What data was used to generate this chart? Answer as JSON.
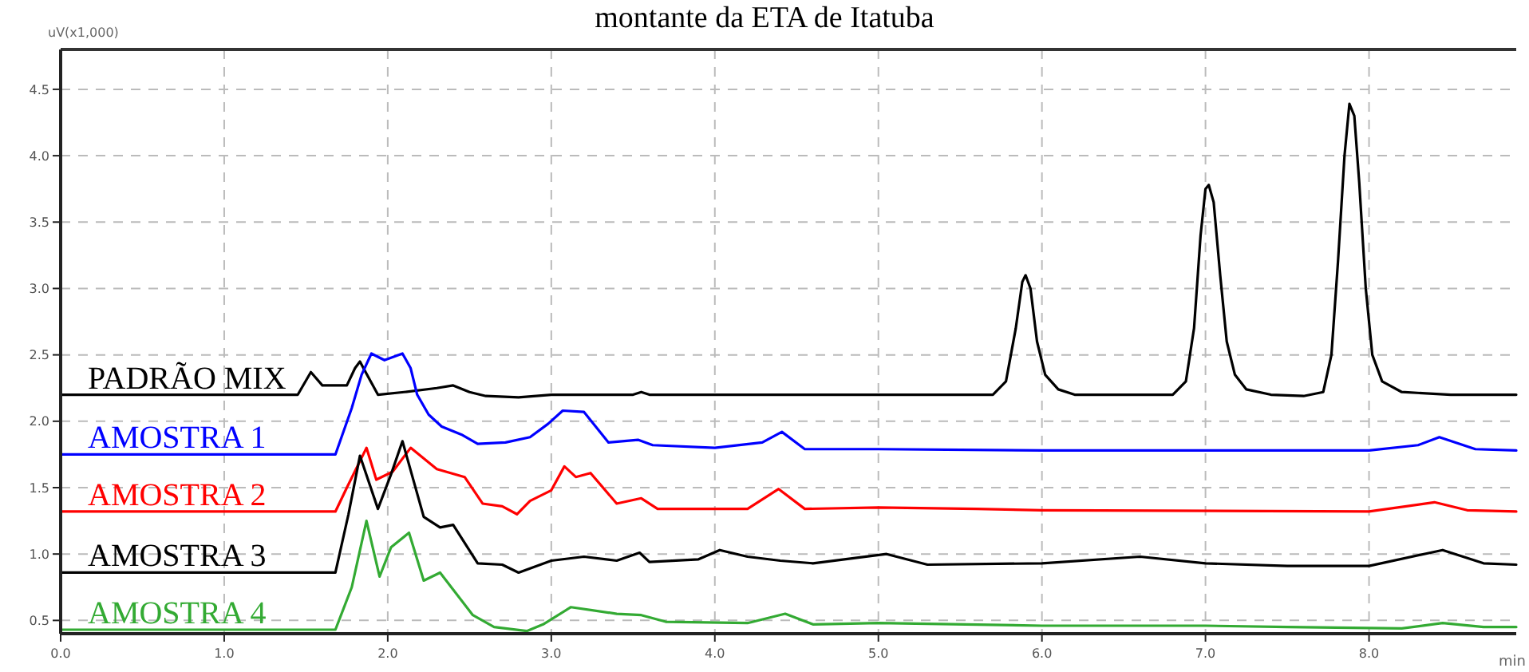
{
  "chart_data": {
    "type": "line",
    "title": "montante da ETA de Itatuba",
    "xlabel": "min",
    "ylabel": "uV(x1,000)",
    "xlim": [
      0,
      8.9
    ],
    "ylim": [
      0.4,
      4.8
    ],
    "xticks": [
      {
        "value": 0,
        "label": "0.0"
      },
      {
        "value": 1,
        "label": "1.0"
      },
      {
        "value": 2,
        "label": "2.0"
      },
      {
        "value": 3,
        "label": "3.0"
      },
      {
        "value": 4,
        "label": "4.0"
      },
      {
        "value": 5,
        "label": "5.0"
      },
      {
        "value": 6,
        "label": "6.0"
      },
      {
        "value": 7,
        "label": "7.0"
      },
      {
        "value": 8,
        "label": "8.0"
      }
    ],
    "yticks": [
      {
        "value": 0.5,
        "label": "0.5"
      },
      {
        "value": 1,
        "label": "1.0"
      },
      {
        "value": 1.5,
        "label": "1.5"
      },
      {
        "value": 2,
        "label": "2.0"
      },
      {
        "value": 2.5,
        "label": "2.5"
      },
      {
        "value": 3,
        "label": "3.0"
      },
      {
        "value": 3.5,
        "label": "3.5"
      },
      {
        "value": 4,
        "label": "4.0"
      },
      {
        "value": 4.5,
        "label": "4.5"
      }
    ],
    "grid": true,
    "line_style": "solid",
    "marker": "none",
    "series": [
      {
        "name": "PADRÃO MIX",
        "color": "#000000",
        "x": [
          0,
          1.45,
          1.53,
          1.6,
          1.75,
          1.8,
          1.83,
          1.86,
          1.94,
          2.1,
          2.3,
          2.4,
          2.5,
          2.6,
          2.8,
          3.0,
          3.5,
          3.55,
          3.6,
          5.0,
          5.7,
          5.78,
          5.84,
          5.88,
          5.9,
          5.93,
          5.97,
          6.02,
          6.1,
          6.2,
          6.8,
          6.88,
          6.93,
          6.97,
          7.0,
          7.02,
          7.05,
          7.09,
          7.13,
          7.18,
          7.25,
          7.4,
          7.6,
          7.72,
          7.77,
          7.81,
          7.85,
          7.88,
          7.91,
          7.94,
          7.98,
          8.02,
          8.08,
          8.2,
          8.5,
          8.9
        ],
        "values": [
          2.2,
          2.2,
          2.37,
          2.27,
          2.27,
          2.4,
          2.45,
          2.38,
          2.2,
          2.22,
          2.25,
          2.27,
          2.22,
          2.19,
          2.18,
          2.2,
          2.2,
          2.22,
          2.2,
          2.2,
          2.2,
          2.3,
          2.7,
          3.05,
          3.1,
          3.0,
          2.6,
          2.35,
          2.24,
          2.2,
          2.2,
          2.3,
          2.7,
          3.4,
          3.75,
          3.78,
          3.65,
          3.1,
          2.6,
          2.35,
          2.24,
          2.2,
          2.19,
          2.22,
          2.5,
          3.2,
          4.0,
          4.39,
          4.3,
          3.8,
          3.0,
          2.5,
          2.3,
          2.22,
          2.2,
          2.2
        ]
      },
      {
        "name": "AMOSTRA 1",
        "color": "#0000ff",
        "x": [
          0,
          1.68,
          1.78,
          1.84,
          1.9,
          1.98,
          2.09,
          2.14,
          2.18,
          2.25,
          2.33,
          2.45,
          2.55,
          2.72,
          2.87,
          2.98,
          3.07,
          3.2,
          3.35,
          3.53,
          3.62,
          4.0,
          4.29,
          4.41,
          4.55,
          5.0,
          6.0,
          7.0,
          8.0,
          8.3,
          8.43,
          8.65,
          8.9
        ],
        "values": [
          1.75,
          1.75,
          2.1,
          2.35,
          2.51,
          2.46,
          2.51,
          2.4,
          2.2,
          2.05,
          1.96,
          1.9,
          1.83,
          1.84,
          1.88,
          1.98,
          2.08,
          2.07,
          1.84,
          1.86,
          1.82,
          1.8,
          1.84,
          1.92,
          1.79,
          1.79,
          1.78,
          1.78,
          1.78,
          1.82,
          1.88,
          1.79,
          1.78
        ]
      },
      {
        "name": "AMOSTRA 2",
        "color": "#ff0000",
        "x": [
          0,
          1.68,
          1.75,
          1.87,
          1.93,
          2.03,
          2.14,
          2.3,
          2.47,
          2.58,
          2.7,
          2.79,
          2.87,
          3.0,
          3.08,
          3.15,
          3.24,
          3.4,
          3.55,
          3.65,
          4.2,
          4.39,
          4.55,
          5.0,
          5.6,
          6.0,
          8.0,
          8.4,
          8.6,
          8.9
        ],
        "values": [
          1.32,
          1.32,
          1.5,
          1.8,
          1.56,
          1.62,
          1.8,
          1.64,
          1.58,
          1.38,
          1.36,
          1.3,
          1.4,
          1.48,
          1.66,
          1.58,
          1.61,
          1.38,
          1.42,
          1.34,
          1.34,
          1.49,
          1.34,
          1.35,
          1.34,
          1.33,
          1.32,
          1.39,
          1.33,
          1.32
        ]
      },
      {
        "name": "AMOSTRA 3",
        "color": "#000000",
        "x": [
          0,
          1.68,
          1.76,
          1.83,
          1.94,
          2.02,
          2.09,
          2.22,
          2.32,
          2.4,
          2.55,
          2.7,
          2.8,
          3.0,
          3.2,
          3.4,
          3.54,
          3.6,
          3.9,
          4.03,
          4.2,
          4.4,
          4.6,
          5.05,
          5.3,
          6.0,
          6.6,
          7.0,
          7.5,
          8.0,
          8.45,
          8.7,
          8.9
        ],
        "values": [
          0.86,
          0.86,
          1.3,
          1.74,
          1.34,
          1.6,
          1.85,
          1.28,
          1.2,
          1.22,
          0.93,
          0.92,
          0.86,
          0.95,
          0.98,
          0.95,
          1.01,
          0.94,
          0.96,
          1.03,
          0.98,
          0.95,
          0.93,
          1.0,
          0.92,
          0.93,
          0.98,
          0.93,
          0.91,
          0.91,
          1.03,
          0.93,
          0.92
        ]
      },
      {
        "name": "AMOSTRA 4",
        "color": "#33aa33",
        "x": [
          0,
          1.68,
          1.78,
          1.87,
          1.95,
          2.02,
          2.13,
          2.22,
          2.32,
          2.52,
          2.65,
          2.85,
          2.95,
          3.12,
          3.4,
          3.55,
          3.7,
          4.2,
          4.43,
          4.6,
          5.0,
          6.0,
          7.0,
          7.5,
          8.2,
          8.45,
          8.7,
          8.9
        ],
        "values": [
          0.43,
          0.43,
          0.75,
          1.25,
          0.83,
          1.05,
          1.16,
          0.8,
          0.86,
          0.54,
          0.45,
          0.42,
          0.47,
          0.6,
          0.55,
          0.54,
          0.49,
          0.48,
          0.55,
          0.47,
          0.48,
          0.46,
          0.46,
          0.45,
          0.44,
          0.48,
          0.45,
          0.45
        ]
      }
    ]
  }
}
